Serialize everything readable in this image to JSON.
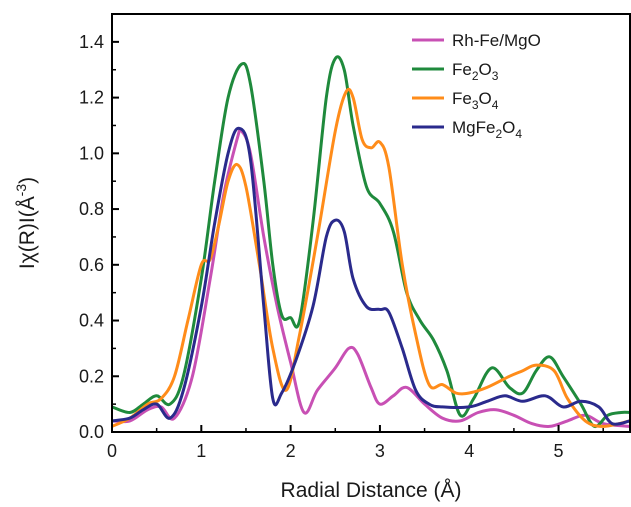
{
  "chart_data": {
    "type": "line",
    "xlabel": "Radial Distance (Å)",
    "ylabel": "Iχ(R)I(Å⁻³)",
    "ylabel_parts": {
      "base": "Iχ(R)I(Å",
      "sup": "-3",
      "close": ")"
    },
    "xlim": [
      0,
      5.8
    ],
    "ylim": [
      0,
      1.5
    ],
    "xticks": [
      0,
      1,
      2,
      3,
      4,
      5
    ],
    "xtick_labels": [
      "0",
      "1",
      "2",
      "3",
      "4",
      "5"
    ],
    "yticks": [
      0.0,
      0.2,
      0.4,
      0.6,
      0.8,
      1.0,
      1.2,
      1.4
    ],
    "ytick_labels": [
      "0.0",
      "0.2",
      "0.4",
      "0.6",
      "0.8",
      "1.0",
      "1.2",
      "1.4"
    ],
    "grid": false,
    "legend_position": "top-right",
    "series": [
      {
        "name": "Rh-Fe/MgO",
        "legend_parts": [
          {
            "t": "Rh-Fe/MgO",
            "sub": false
          }
        ],
        "color": "#c850b4",
        "points": [
          [
            0,
            0.04
          ],
          [
            0.2,
            0.04
          ],
          [
            0.4,
            0.08
          ],
          [
            0.55,
            0.09
          ],
          [
            0.7,
            0.05
          ],
          [
            0.9,
            0.2
          ],
          [
            1.1,
            0.55
          ],
          [
            1.25,
            0.85
          ],
          [
            1.4,
            1.05
          ],
          [
            1.45,
            1.08
          ],
          [
            1.55,
            1.0
          ],
          [
            1.7,
            0.7
          ],
          [
            1.85,
            0.45
          ],
          [
            2.0,
            0.25
          ],
          [
            2.15,
            0.07
          ],
          [
            2.3,
            0.15
          ],
          [
            2.5,
            0.23
          ],
          [
            2.65,
            0.3
          ],
          [
            2.75,
            0.28
          ],
          [
            2.9,
            0.16
          ],
          [
            3.0,
            0.1
          ],
          [
            3.15,
            0.13
          ],
          [
            3.3,
            0.16
          ],
          [
            3.5,
            0.1
          ],
          [
            3.7,
            0.05
          ],
          [
            3.9,
            0.04
          ],
          [
            4.1,
            0.07
          ],
          [
            4.3,
            0.08
          ],
          [
            4.5,
            0.06
          ],
          [
            4.7,
            0.03
          ],
          [
            4.9,
            0.02
          ],
          [
            5.1,
            0.04
          ],
          [
            5.3,
            0.06
          ],
          [
            5.5,
            0.03
          ],
          [
            5.8,
            0.02
          ]
        ]
      },
      {
        "name": "Fe2O3",
        "legend_parts": [
          {
            "t": "Fe",
            "sub": false
          },
          {
            "t": "2",
            "sub": true
          },
          {
            "t": "O",
            "sub": false
          },
          {
            "t": "3",
            "sub": true
          }
        ],
        "color": "#1f8a3c",
        "points": [
          [
            0,
            0.09
          ],
          [
            0.2,
            0.07
          ],
          [
            0.35,
            0.1
          ],
          [
            0.5,
            0.13
          ],
          [
            0.65,
            0.1
          ],
          [
            0.8,
            0.2
          ],
          [
            1.0,
            0.55
          ],
          [
            1.15,
            0.9
          ],
          [
            1.3,
            1.2
          ],
          [
            1.45,
            1.32
          ],
          [
            1.55,
            1.25
          ],
          [
            1.7,
            0.9
          ],
          [
            1.8,
            0.6
          ],
          [
            1.9,
            0.42
          ],
          [
            2.0,
            0.41
          ],
          [
            2.1,
            0.4
          ],
          [
            2.25,
            0.75
          ],
          [
            2.4,
            1.2
          ],
          [
            2.5,
            1.34
          ],
          [
            2.6,
            1.3
          ],
          [
            2.7,
            1.1
          ],
          [
            2.85,
            0.88
          ],
          [
            3.0,
            0.82
          ],
          [
            3.15,
            0.72
          ],
          [
            3.3,
            0.5
          ],
          [
            3.45,
            0.4
          ],
          [
            3.6,
            0.33
          ],
          [
            3.75,
            0.22
          ],
          [
            3.9,
            0.06
          ],
          [
            4.05,
            0.12
          ],
          [
            4.25,
            0.23
          ],
          [
            4.45,
            0.16
          ],
          [
            4.6,
            0.14
          ],
          [
            4.75,
            0.22
          ],
          [
            4.9,
            0.27
          ],
          [
            5.05,
            0.2
          ],
          [
            5.25,
            0.1
          ],
          [
            5.4,
            0.02
          ],
          [
            5.55,
            0.06
          ],
          [
            5.7,
            0.07
          ],
          [
            5.8,
            0.07
          ]
        ]
      },
      {
        "name": "Fe3O4",
        "legend_parts": [
          {
            "t": "Fe",
            "sub": false
          },
          {
            "t": "3",
            "sub": true
          },
          {
            "t": "O",
            "sub": false
          },
          {
            "t": "4",
            "sub": true
          }
        ],
        "color": "#ff8c1a",
        "points": [
          [
            0,
            0.02
          ],
          [
            0.2,
            0.05
          ],
          [
            0.4,
            0.1
          ],
          [
            0.55,
            0.12
          ],
          [
            0.7,
            0.2
          ],
          [
            0.85,
            0.4
          ],
          [
            1.0,
            0.6
          ],
          [
            1.1,
            0.62
          ],
          [
            1.2,
            0.75
          ],
          [
            1.3,
            0.9
          ],
          [
            1.4,
            0.96
          ],
          [
            1.5,
            0.88
          ],
          [
            1.65,
            0.6
          ],
          [
            1.8,
            0.3
          ],
          [
            1.95,
            0.15
          ],
          [
            2.1,
            0.35
          ],
          [
            2.3,
            0.7
          ],
          [
            2.5,
            1.08
          ],
          [
            2.62,
            1.22
          ],
          [
            2.7,
            1.2
          ],
          [
            2.8,
            1.05
          ],
          [
            2.9,
            1.02
          ],
          [
            3.0,
            1.04
          ],
          [
            3.1,
            0.95
          ],
          [
            3.25,
            0.6
          ],
          [
            3.4,
            0.35
          ],
          [
            3.55,
            0.17
          ],
          [
            3.7,
            0.17
          ],
          [
            3.85,
            0.14
          ],
          [
            4.0,
            0.14
          ],
          [
            4.2,
            0.16
          ],
          [
            4.45,
            0.2
          ],
          [
            4.6,
            0.22
          ],
          [
            4.75,
            0.24
          ],
          [
            4.95,
            0.22
          ],
          [
            5.1,
            0.12
          ],
          [
            5.3,
            0.04
          ],
          [
            5.5,
            0.02
          ],
          [
            5.8,
            0.04
          ]
        ]
      },
      {
        "name": "MgFe2O4",
        "legend_parts": [
          {
            "t": "MgFe",
            "sub": false
          },
          {
            "t": "2",
            "sub": true
          },
          {
            "t": "O",
            "sub": false
          },
          {
            "t": "4",
            "sub": true
          }
        ],
        "color": "#2a2a8c",
        "points": [
          [
            0,
            0.04
          ],
          [
            0.2,
            0.05
          ],
          [
            0.35,
            0.08
          ],
          [
            0.5,
            0.1
          ],
          [
            0.65,
            0.05
          ],
          [
            0.8,
            0.15
          ],
          [
            1.0,
            0.45
          ],
          [
            1.15,
            0.75
          ],
          [
            1.3,
            1.0
          ],
          [
            1.42,
            1.09
          ],
          [
            1.55,
            0.98
          ],
          [
            1.7,
            0.45
          ],
          [
            1.8,
            0.12
          ],
          [
            1.9,
            0.14
          ],
          [
            2.05,
            0.25
          ],
          [
            2.25,
            0.45
          ],
          [
            2.4,
            0.7
          ],
          [
            2.5,
            0.76
          ],
          [
            2.6,
            0.72
          ],
          [
            2.7,
            0.55
          ],
          [
            2.85,
            0.45
          ],
          [
            3.0,
            0.44
          ],
          [
            3.1,
            0.43
          ],
          [
            3.25,
            0.3
          ],
          [
            3.4,
            0.15
          ],
          [
            3.55,
            0.1
          ],
          [
            3.7,
            0.09
          ],
          [
            4.0,
            0.09
          ],
          [
            4.2,
            0.11
          ],
          [
            4.4,
            0.13
          ],
          [
            4.6,
            0.11
          ],
          [
            4.85,
            0.13
          ],
          [
            5.05,
            0.09
          ],
          [
            5.25,
            0.11
          ],
          [
            5.45,
            0.09
          ],
          [
            5.6,
            0.03
          ],
          [
            5.8,
            0.04
          ]
        ]
      }
    ]
  }
}
